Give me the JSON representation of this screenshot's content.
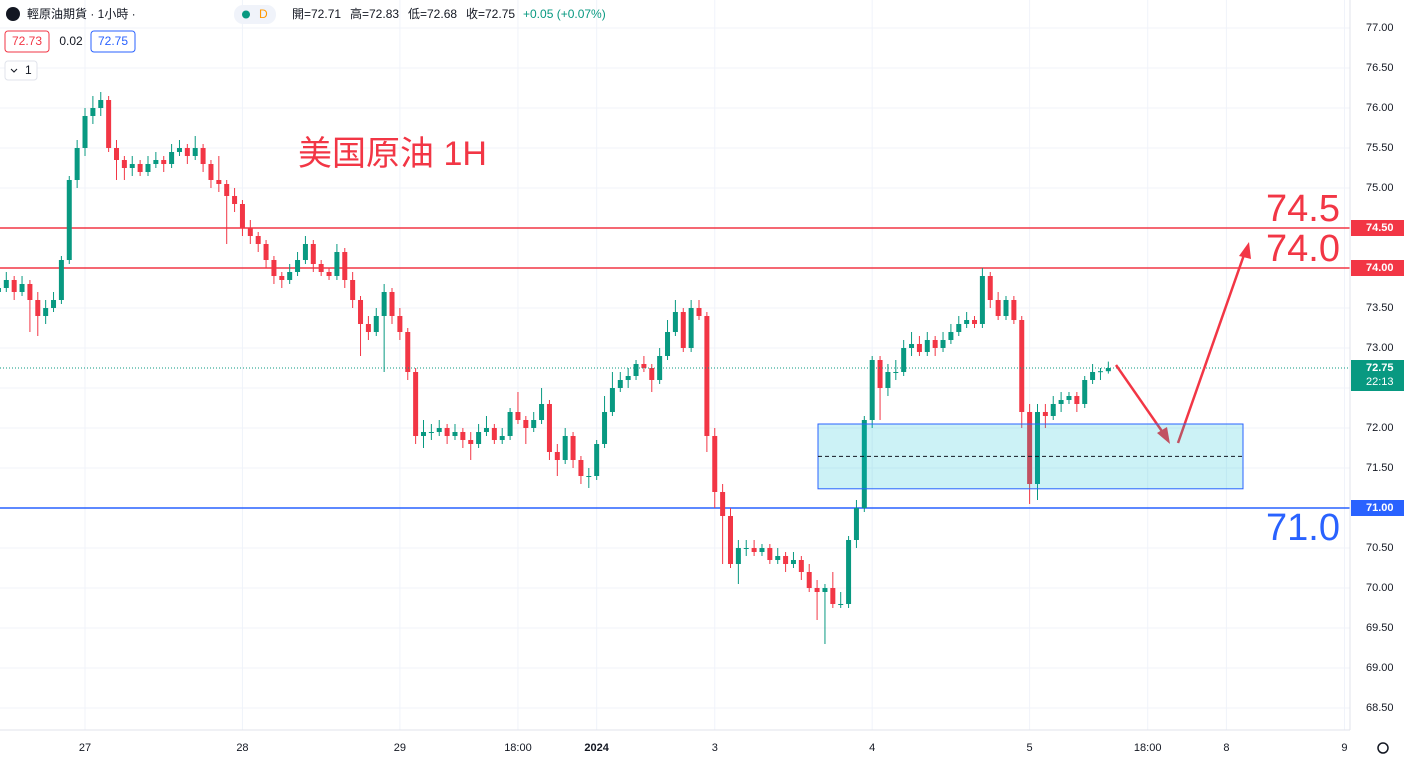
{
  "header": {
    "symbol": "輕原油期貨 · 1小時 ·",
    "badge": "D",
    "open": "開=72.71",
    "high": "高=72.83",
    "low": "低=72.68",
    "close": "收=72.75",
    "change": "+0.05 (+0.07%)",
    "bid": "72.73",
    "spread": "0.02",
    "ask": "72.75",
    "layers": "1"
  },
  "chart_data": {
    "type": "candlestick",
    "title": "美国原油 1H",
    "up_color": "#089981",
    "down_color": "#f23645",
    "grid": true,
    "ylim": [
      68.225,
      77.35
    ],
    "yticks": [
      {
        "value": 68.5,
        "label": "68.50"
      },
      {
        "value": 69,
        "label": "69.00"
      },
      {
        "value": 69.5,
        "label": "69.50"
      },
      {
        "value": 70,
        "label": "70.00"
      },
      {
        "value": 70.5,
        "label": "70.50"
      },
      {
        "value": 71,
        "label": "71.00"
      },
      {
        "value": 71.5,
        "label": "71.50"
      },
      {
        "value": 72,
        "label": "72.00"
      },
      {
        "value": 72.5,
        "label": "72.50"
      },
      {
        "value": 73,
        "label": "73.00"
      },
      {
        "value": 73.5,
        "label": "73.50"
      },
      {
        "value": 74,
        "label": "74.00"
      },
      {
        "value": 74.5,
        "label": "74.50"
      },
      {
        "value": 75,
        "label": "75.00"
      },
      {
        "value": 75.5,
        "label": "75.50"
      },
      {
        "value": 76,
        "label": "76.00"
      },
      {
        "value": 76.5,
        "label": "76.50"
      },
      {
        "value": 77,
        "label": "77.00"
      }
    ],
    "xlim": [
      0.2,
      171.7
    ],
    "xticks": [
      {
        "value": 11,
        "label": "27"
      },
      {
        "value": 31,
        "label": "28"
      },
      {
        "value": 51,
        "label": "29"
      },
      {
        "value": 66,
        "label": "18:00"
      },
      {
        "value": 76,
        "label": "2024"
      },
      {
        "value": 91,
        "label": "3"
      },
      {
        "value": 111,
        "label": "4"
      },
      {
        "value": 131,
        "label": "5"
      },
      {
        "value": 146,
        "label": "18:00"
      },
      {
        "value": 156,
        "label": "8"
      },
      {
        "value": 171,
        "label": "9"
      }
    ],
    "levels": [
      {
        "value": 74.5,
        "label": "74.50",
        "color": "#f23645"
      },
      {
        "value": 74,
        "label": "74.00",
        "note": "74.0",
        "color": "#f23645"
      },
      {
        "value": 71,
        "label": "71.00",
        "note": "71.0",
        "color": "#2962ff"
      }
    ],
    "last": {
      "value": 72.75,
      "countdown": "22:13",
      "color": "#089981"
    },
    "zone": [
      71.24,
      72.05
    ],
    "candles": [
      [
        73.7,
        73.85,
        73.6,
        73.75
      ],
      [
        73.75,
        73.95,
        73.7,
        73.85
      ],
      [
        73.85,
        73.9,
        73.6,
        73.7
      ],
      [
        73.7,
        73.9,
        73.65,
        73.8
      ],
      [
        73.8,
        73.85,
        73.2,
        73.6
      ],
      [
        73.6,
        73.7,
        73.15,
        73.4
      ],
      [
        73.4,
        73.6,
        73.3,
        73.5
      ],
      [
        73.5,
        73.7,
        73.45,
        73.6
      ],
      [
        73.6,
        74.15,
        73.55,
        74.1
      ],
      [
        74.1,
        75.15,
        74.05,
        75.1
      ],
      [
        75.1,
        75.6,
        75.0,
        75.5
      ],
      [
        75.5,
        76.0,
        75.4,
        75.9
      ],
      [
        75.9,
        76.15,
        75.8,
        76.0
      ],
      [
        76.0,
        76.2,
        75.9,
        76.1
      ],
      [
        76.1,
        76.15,
        75.45,
        75.5
      ],
      [
        75.5,
        75.6,
        75.1,
        75.35
      ],
      [
        75.35,
        75.4,
        75.1,
        75.25
      ],
      [
        75.25,
        75.4,
        75.15,
        75.3
      ],
      [
        75.3,
        75.35,
        75.15,
        75.2
      ],
      [
        75.2,
        75.4,
        75.15,
        75.3
      ],
      [
        75.3,
        75.45,
        75.25,
        75.35
      ],
      [
        75.35,
        75.4,
        75.2,
        75.3
      ],
      [
        75.3,
        75.55,
        75.25,
        75.45
      ],
      [
        75.45,
        75.6,
        75.4,
        75.5
      ],
      [
        75.5,
        75.55,
        75.3,
        75.4
      ],
      [
        75.4,
        75.65,
        75.35,
        75.5
      ],
      [
        75.5,
        75.55,
        75.2,
        75.3
      ],
      [
        75.3,
        75.35,
        75.0,
        75.1
      ],
      [
        75.1,
        75.4,
        74.95,
        75.05
      ],
      [
        75.05,
        75.1,
        74.3,
        74.9
      ],
      [
        74.9,
        75.0,
        74.7,
        74.8
      ],
      [
        74.8,
        74.85,
        74.4,
        74.5
      ],
      [
        74.5,
        74.6,
        74.3,
        74.4
      ],
      [
        74.4,
        74.45,
        74.2,
        74.3
      ],
      [
        74.3,
        74.35,
        74.0,
        74.1
      ],
      [
        74.1,
        74.15,
        73.8,
        73.9
      ],
      [
        73.9,
        73.95,
        73.75,
        73.85
      ],
      [
        73.85,
        74.05,
        73.8,
        73.95
      ],
      [
        73.95,
        74.2,
        73.9,
        74.1
      ],
      [
        74.1,
        74.4,
        74.05,
        74.3
      ],
      [
        74.3,
        74.35,
        73.95,
        74.05
      ],
      [
        74.05,
        74.1,
        73.9,
        73.95
      ],
      [
        73.95,
        74.0,
        73.85,
        73.9
      ],
      [
        73.9,
        74.3,
        73.85,
        74.2
      ],
      [
        74.2,
        74.25,
        73.75,
        73.85
      ],
      [
        73.85,
        73.95,
        73.5,
        73.6
      ],
      [
        73.6,
        73.65,
        72.9,
        73.3
      ],
      [
        73.3,
        73.4,
        73.1,
        73.2
      ],
      [
        73.2,
        73.5,
        73.15,
        73.4
      ],
      [
        73.4,
        73.8,
        72.7,
        73.7
      ],
      [
        73.7,
        73.75,
        73.3,
        73.4
      ],
      [
        73.4,
        73.5,
        73.1,
        73.2
      ],
      [
        73.2,
        73.25,
        72.6,
        72.7
      ],
      [
        72.7,
        72.75,
        71.8,
        71.9
      ],
      [
        71.9,
        72.1,
        71.75,
        71.95
      ],
      [
        71.95,
        72.05,
        71.85,
        71.95
      ],
      [
        71.95,
        72.1,
        71.9,
        72.0
      ],
      [
        72.0,
        72.05,
        71.8,
        71.9
      ],
      [
        71.9,
        72.05,
        71.85,
        71.95
      ],
      [
        71.95,
        72.0,
        71.75,
        71.85
      ],
      [
        71.85,
        71.95,
        71.6,
        71.8
      ],
      [
        71.8,
        72.05,
        71.75,
        71.95
      ],
      [
        71.95,
        72.15,
        71.9,
        72.0
      ],
      [
        72.0,
        72.05,
        71.8,
        71.85
      ],
      [
        71.85,
        72.0,
        71.8,
        71.9
      ],
      [
        71.9,
        72.25,
        71.85,
        72.2
      ],
      [
        72.2,
        72.45,
        72.05,
        72.1
      ],
      [
        72.1,
        72.15,
        71.8,
        72.0
      ],
      [
        72.0,
        72.2,
        71.95,
        72.1
      ],
      [
        72.1,
        72.5,
        72.05,
        72.3
      ],
      [
        72.3,
        72.35,
        71.6,
        71.7
      ],
      [
        71.7,
        71.8,
        71.4,
        71.6
      ],
      [
        71.6,
        72.0,
        71.55,
        71.9
      ],
      [
        71.9,
        71.95,
        71.5,
        71.6
      ],
      [
        71.6,
        71.65,
        71.3,
        71.4
      ],
      [
        71.4,
        71.5,
        71.25,
        71.4
      ],
      [
        71.4,
        71.85,
        71.35,
        71.8
      ],
      [
        71.8,
        72.4,
        71.75,
        72.2
      ],
      [
        72.2,
        72.7,
        72.15,
        72.5
      ],
      [
        72.5,
        72.7,
        72.45,
        72.6
      ],
      [
        72.6,
        72.75,
        72.5,
        72.65
      ],
      [
        72.65,
        72.85,
        72.6,
        72.8
      ],
      [
        72.8,
        72.9,
        72.7,
        72.75
      ],
      [
        72.75,
        72.8,
        72.45,
        72.6
      ],
      [
        72.6,
        73.0,
        72.55,
        72.9
      ],
      [
        72.9,
        73.35,
        72.85,
        73.2
      ],
      [
        73.2,
        73.6,
        73.15,
        73.45
      ],
      [
        73.45,
        73.5,
        72.95,
        73.0
      ],
      [
        73.0,
        73.6,
        72.95,
        73.5
      ],
      [
        73.5,
        73.6,
        73.35,
        73.4
      ],
      [
        73.4,
        73.45,
        71.7,
        71.9
      ],
      [
        71.9,
        72.0,
        71.0,
        71.2
      ],
      [
        71.2,
        71.3,
        70.3,
        70.9
      ],
      [
        70.9,
        71.0,
        70.25,
        70.3
      ],
      [
        70.3,
        70.6,
        70.05,
        70.5
      ],
      [
        70.5,
        70.6,
        70.4,
        70.5
      ],
      [
        70.5,
        70.6,
        70.4,
        70.45
      ],
      [
        70.45,
        70.55,
        70.4,
        70.5
      ],
      [
        70.5,
        70.55,
        70.3,
        70.35
      ],
      [
        70.35,
        70.5,
        70.3,
        70.4
      ],
      [
        70.4,
        70.45,
        70.2,
        70.3
      ],
      [
        70.3,
        70.45,
        70.25,
        70.35
      ],
      [
        70.35,
        70.4,
        70.1,
        70.2
      ],
      [
        70.2,
        70.3,
        69.95,
        70.0
      ],
      [
        70.0,
        70.1,
        69.6,
        69.95
      ],
      [
        69.95,
        70.05,
        69.3,
        70.0
      ],
      [
        70.0,
        70.2,
        69.75,
        69.8
      ],
      [
        69.8,
        69.95,
        69.75,
        69.8
      ],
      [
        69.8,
        70.65,
        69.75,
        70.6
      ],
      [
        70.6,
        71.1,
        70.5,
        71.0
      ],
      [
        71.0,
        72.15,
        70.95,
        72.1
      ],
      [
        72.1,
        72.9,
        72.0,
        72.85
      ],
      [
        72.85,
        72.9,
        72.1,
        72.5
      ],
      [
        72.5,
        72.8,
        72.4,
        72.7
      ],
      [
        72.7,
        72.85,
        72.6,
        72.7
      ],
      [
        72.7,
        73.1,
        72.65,
        73.0
      ],
      [
        73.0,
        73.2,
        72.9,
        73.05
      ],
      [
        73.05,
        73.15,
        72.9,
        72.95
      ],
      [
        72.95,
        73.2,
        72.9,
        73.1
      ],
      [
        73.1,
        73.15,
        72.9,
        73.0
      ],
      [
        73.0,
        73.2,
        72.95,
        73.1
      ],
      [
        73.1,
        73.3,
        73.05,
        73.2
      ],
      [
        73.2,
        73.4,
        73.15,
        73.3
      ],
      [
        73.3,
        73.45,
        73.25,
        73.35
      ],
      [
        73.35,
        73.4,
        73.25,
        73.3
      ],
      [
        73.3,
        74.0,
        73.25,
        73.9
      ],
      [
        73.9,
        73.95,
        73.5,
        73.6
      ],
      [
        73.6,
        73.7,
        73.35,
        73.4
      ],
      [
        73.4,
        73.65,
        73.35,
        73.6
      ],
      [
        73.6,
        73.65,
        73.3,
        73.35
      ],
      [
        73.35,
        73.4,
        72.0,
        72.2
      ],
      [
        72.2,
        72.3,
        71.05,
        71.3
      ],
      [
        71.3,
        72.3,
        71.1,
        72.2
      ],
      [
        72.2,
        72.3,
        72.0,
        72.15
      ],
      [
        72.15,
        72.4,
        72.1,
        72.3
      ],
      [
        72.3,
        72.45,
        72.2,
        72.35
      ],
      [
        72.35,
        72.45,
        72.3,
        72.4
      ],
      [
        72.4,
        72.45,
        72.2,
        72.3
      ],
      [
        72.3,
        72.65,
        72.25,
        72.6
      ],
      [
        72.6,
        72.8,
        72.55,
        72.7
      ],
      [
        72.7,
        72.75,
        72.6,
        72.71
      ],
      [
        72.71,
        72.83,
        72.68,
        72.75
      ]
    ]
  }
}
